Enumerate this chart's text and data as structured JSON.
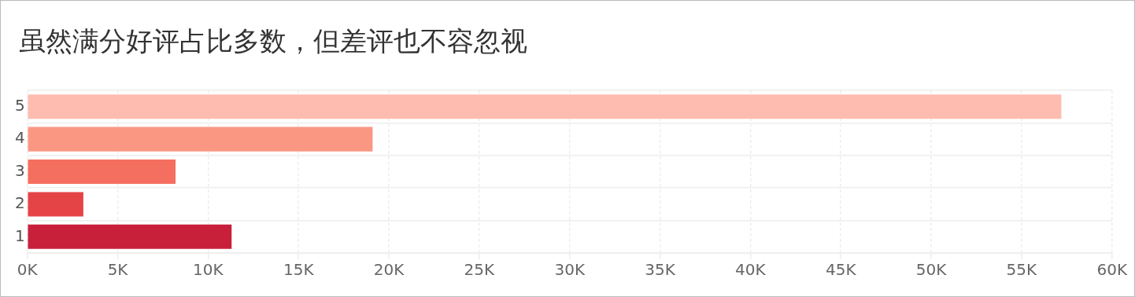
{
  "chart_data": {
    "type": "bar",
    "orientation": "horizontal",
    "title": "虽然满分好评占比多数，但差评也不容忽视",
    "categories": [
      "5",
      "4",
      "3",
      "2",
      "1"
    ],
    "values": [
      57.2,
      19.1,
      8.2,
      3.1,
      11.3
    ],
    "colors": [
      "#febcb0",
      "#fa9782",
      "#f46f5f",
      "#e54446",
      "#c8203b"
    ],
    "xlim": [
      0,
      60
    ],
    "xticks": [
      {
        "value": 0,
        "label": "0K"
      },
      {
        "value": 5,
        "label": "5K"
      },
      {
        "value": 10,
        "label": "10K"
      },
      {
        "value": 15,
        "label": "15K"
      },
      {
        "value": 20,
        "label": "20K"
      },
      {
        "value": 25,
        "label": "25K"
      },
      {
        "value": 30,
        "label": "30K"
      },
      {
        "value": 35,
        "label": "35K"
      },
      {
        "value": 40,
        "label": "40K"
      },
      {
        "value": 45,
        "label": "45K"
      },
      {
        "value": 50,
        "label": "50K"
      },
      {
        "value": 55,
        "label": "55K"
      },
      {
        "value": 60,
        "label": "60K"
      }
    ],
    "grid": true,
    "legend": false
  }
}
